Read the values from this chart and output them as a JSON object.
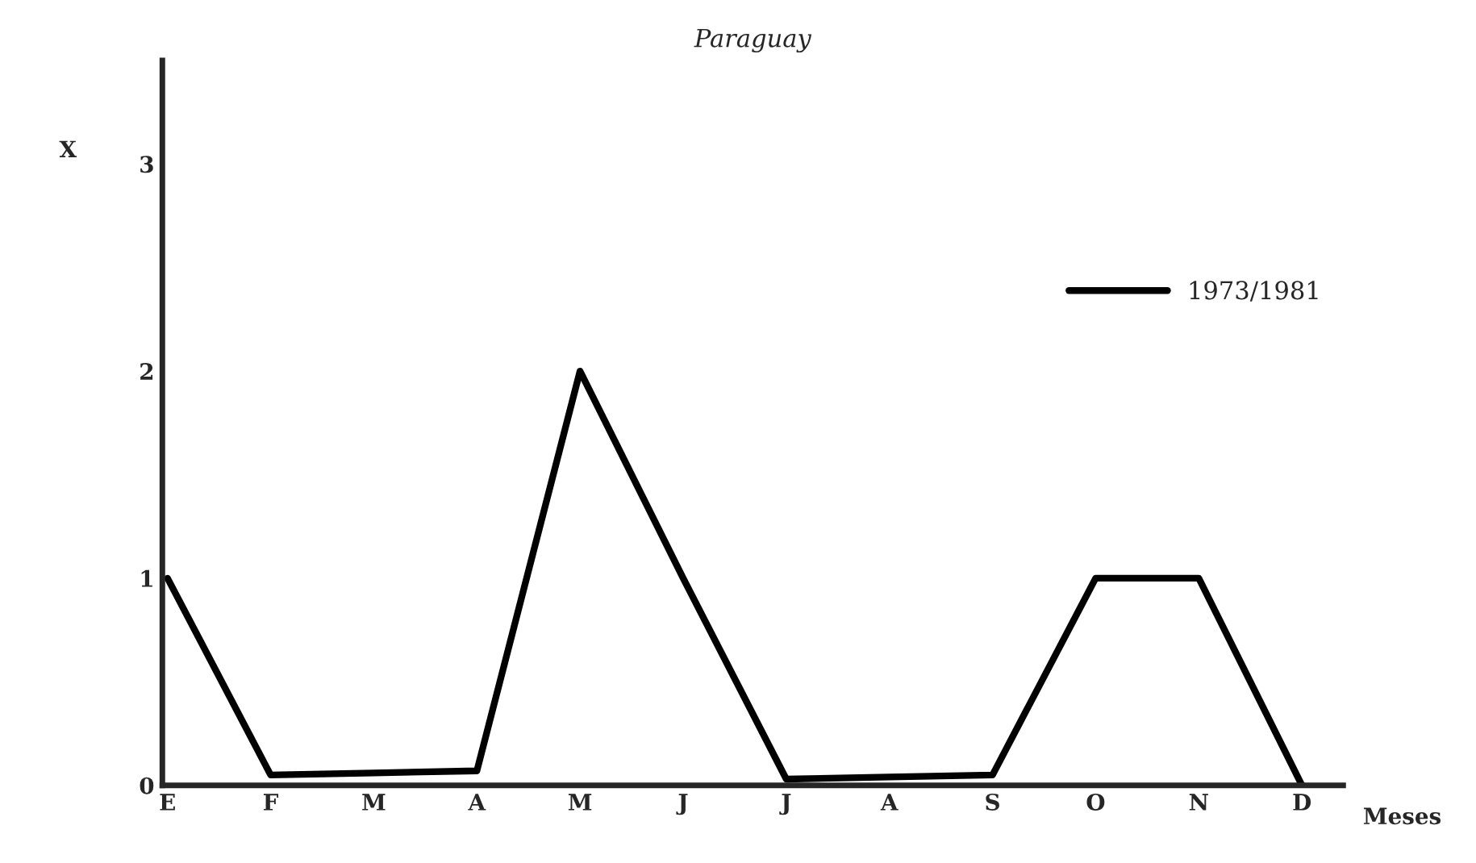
{
  "chart_data": {
    "type": "line",
    "title": "Paraguay",
    "xlabel": "Meses",
    "ylabel": "X",
    "categories": [
      "E",
      "F",
      "M",
      "A",
      "M",
      "J",
      "J",
      "A",
      "S",
      "O",
      "N",
      "D"
    ],
    "series": [
      {
        "name": "1973/1981",
        "color": "#000000",
        "values": [
          1,
          0.05,
          0.06,
          0.07,
          2,
          1.0,
          0.03,
          0.04,
          0.05,
          1,
          1,
          0
        ]
      }
    ],
    "ylim": [
      0,
      3.5
    ],
    "yticks": [
      0,
      1,
      2,
      3
    ],
    "grid": false,
    "legend": "right",
    "marker": "none",
    "line_style": "solid"
  }
}
